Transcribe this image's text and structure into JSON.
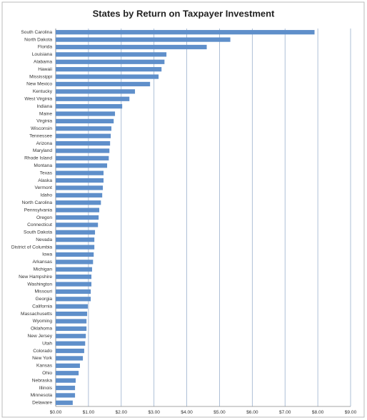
{
  "chart_data": {
    "type": "bar",
    "orientation": "horizontal",
    "title": "States by Return on Taxpayer Investment",
    "categories": [
      "South Carolina",
      "North Dakota",
      "Florida",
      "Louisiana",
      "Alabama",
      "Hawaii",
      "Mississippi",
      "New Mexico",
      "Kentucky",
      "West Virginia",
      "Indiana",
      "Maine",
      "Virginia",
      "Wisconsin",
      "Tennessee",
      "Arizona",
      "Maryland",
      "Rhode Island",
      "Montana",
      "Texas",
      "Alaska",
      "Vermont",
      "Idaho",
      "North Carolina",
      "Pennsylvania",
      "Oregon",
      "Connecticut",
      "South Dakota",
      "Nevada",
      "District of Columbia",
      "Iowa",
      "Arkansas",
      "Michigan",
      "New Hampshire",
      "Washington",
      "Missouri",
      "Georgia",
      "California",
      "Massachusetts",
      "Wyoming",
      "Oklahoma",
      "New Jersey",
      "Utah",
      "Colorado",
      "New York",
      "Kansas",
      "Ohio",
      "Nebraska",
      "Illinois",
      "Minnesota",
      "Delaware"
    ],
    "values": [
      7.9,
      5.33,
      4.61,
      3.38,
      3.32,
      3.23,
      3.14,
      2.88,
      2.42,
      2.25,
      2.03,
      1.81,
      1.77,
      1.7,
      1.68,
      1.66,
      1.64,
      1.62,
      1.57,
      1.46,
      1.46,
      1.44,
      1.42,
      1.38,
      1.33,
      1.31,
      1.29,
      1.2,
      1.18,
      1.18,
      1.16,
      1.14,
      1.11,
      1.09,
      1.09,
      1.07,
      1.07,
      0.98,
      0.96,
      0.94,
      0.94,
      0.92,
      0.9,
      0.87,
      0.83,
      0.74,
      0.7,
      0.61,
      0.59,
      0.59,
      0.52
    ],
    "color": "#5f8fca",
    "xlim": [
      0,
      9
    ],
    "xticks": [
      {
        "value": 0,
        "label": "$0.00"
      },
      {
        "value": 1,
        "label": "$1.00"
      },
      {
        "value": 2,
        "label": "$2.00"
      },
      {
        "value": 3,
        "label": "$3.00"
      },
      {
        "value": 4,
        "label": "$4.00"
      },
      {
        "value": 5,
        "label": "$5.00"
      },
      {
        "value": 6,
        "label": "$6.00"
      },
      {
        "value": 7,
        "label": "$7.00"
      },
      {
        "value": 8,
        "label": "$8.00"
      },
      {
        "value": 9,
        "label": "$9.00"
      }
    ],
    "grid": true
  }
}
